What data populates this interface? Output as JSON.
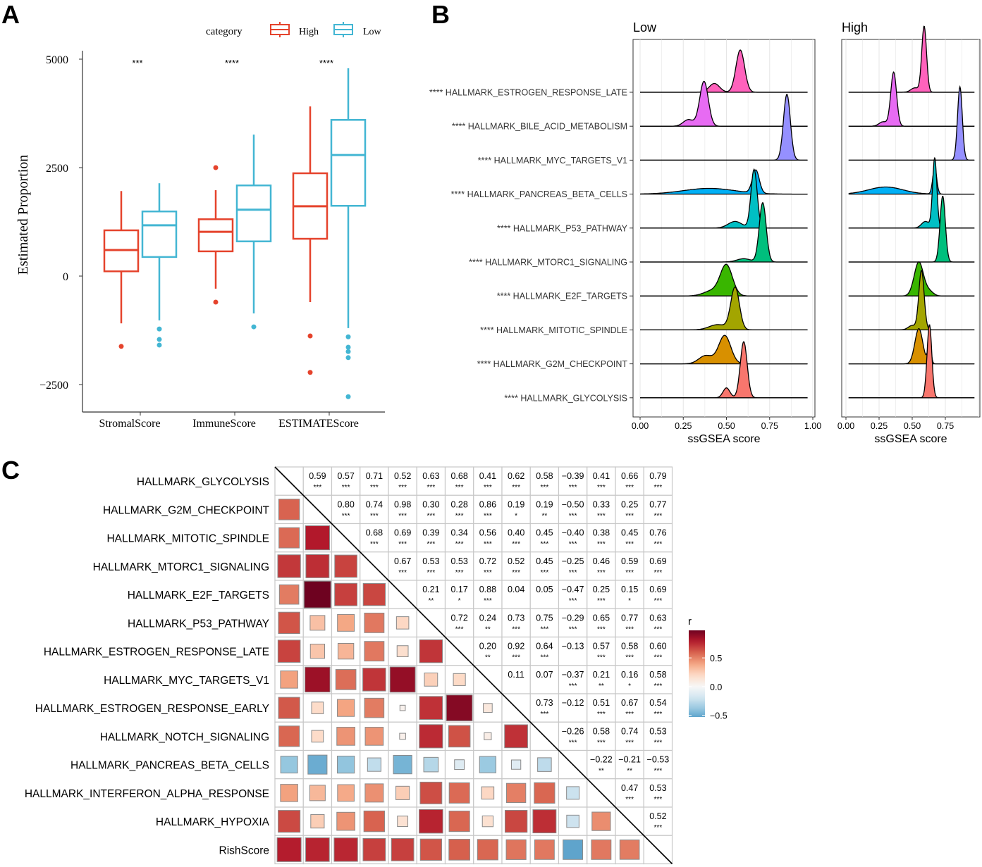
{
  "panel_labels": [
    "A",
    "B",
    "C"
  ],
  "chart_data": [
    {
      "type": "box",
      "title": "",
      "xlabel": "",
      "ylabel": "Estimated Proportion",
      "ylim": [
        -3300,
        5300
      ],
      "yticks": [
        -2500,
        0,
        2500,
        5000
      ],
      "ytick_labels": [
        "−2500",
        "0",
        "2500",
        "5000"
      ],
      "categories": [
        "StromalScore",
        "ImmuneScore",
        "ESTIMATEScore"
      ],
      "significance": [
        "***",
        "****",
        "****"
      ],
      "legend": {
        "title": "category",
        "entries": [
          "High",
          "Low"
        ],
        "placement": "top"
      },
      "colors": {
        "High": "#E5432C",
        "Low": "#43B6D3"
      },
      "series": [
        {
          "name": "High",
          "stats": [
            {
              "lower": -1090,
              "q1": 110,
              "median": 600,
              "q3": 1055,
              "upper": 1960,
              "outliers": [
                -1620
              ]
            },
            {
              "lower": -290,
              "q1": 570,
              "median": 1020,
              "q3": 1310,
              "upper": 1980,
              "outliers": [
                2500,
                -600
              ]
            },
            {
              "lower": -600,
              "q1": 860,
              "median": 1610,
              "q3": 2370,
              "upper": 3910,
              "outliers": [
                -1380,
                -2220
              ]
            }
          ]
        },
        {
          "name": "Low",
          "stats": [
            {
              "lower": -1020,
              "q1": 440,
              "median": 1170,
              "q3": 1490,
              "upper": 2140,
              "outliers": [
                -1220,
                -1460,
                -1590
              ]
            },
            {
              "lower": -860,
              "q1": 800,
              "median": 1530,
              "q3": 2090,
              "upper": 3260,
              "outliers": [
                -1170
              ]
            },
            {
              "lower": -1200,
              "q1": 1620,
              "median": 2790,
              "q3": 3600,
              "upper": 4790,
              "outliers": [
                -1400,
                -1640,
                -1740,
                -1880,
                -2780
              ]
            }
          ]
        }
      ]
    },
    {
      "type": "ridgeline",
      "xlabel": "ssGSEA score",
      "panels": [
        {
          "title": "Low",
          "xlim": [
            -0.04,
            1.0
          ],
          "xticks": [
            0,
            0.25,
            0.5,
            0.75,
            1.0
          ],
          "xtick_labels": [
            "0.00",
            "0.25",
            "0.50",
            "0.75",
            "1.00"
          ]
        },
        {
          "title": "High",
          "xlim": [
            -0.03,
            0.95
          ],
          "xticks": [
            0,
            0.25,
            0.5,
            0.75
          ],
          "xtick_labels": [
            "0.00",
            "0.25",
            "0.50",
            "0.75"
          ]
        }
      ],
      "rows": [
        {
          "label": "**** HALLMARK_ESTROGEN_RESPONSE_LATE",
          "color": "#FF62BC",
          "low": [
            [
              0.58,
              0.025,
              0.8
            ],
            [
              0.43,
              0.03,
              0.2
            ]
          ],
          "high": [
            [
              0.59,
              0.018,
              0.9
            ],
            [
              0.52,
              0.03,
              0.1
            ]
          ]
        },
        {
          "label": "**** HALLMARK_BILE_ACID_METABOLISM",
          "color": "#E76BF3",
          "low": [
            [
              0.37,
              0.025,
              0.85
            ],
            [
              0.28,
              0.03,
              0.15
            ]
          ],
          "high": [
            [
              0.36,
              0.022,
              0.9
            ],
            [
              0.28,
              0.03,
              0.1
            ]
          ]
        },
        {
          "label": "**** HALLMARK_MYC_TARGETS_V1",
          "color": "#9590FF",
          "low": [
            [
              0.85,
              0.02,
              1
            ]
          ],
          "high": [
            [
              0.86,
              0.018,
              1
            ]
          ]
        },
        {
          "label": "**** HALLMARK_PANCREAS_BETA_CELLS",
          "color": "#00B0F6",
          "low": [
            [
              0.67,
              0.02,
              0.35
            ],
            [
              0.4,
              0.15,
              0.65
            ]
          ],
          "high": [
            [
              0.67,
              0.015,
              0.3
            ],
            [
              0.3,
              0.13,
              0.7
            ]
          ]
        },
        {
          "label": "**** HALLMARK_P53_PATHWAY",
          "color": "#00BFC4",
          "low": [
            [
              0.66,
              0.018,
              0.8
            ],
            [
              0.55,
              0.04,
              0.2
            ]
          ],
          "high": [
            [
              0.67,
              0.016,
              0.85
            ],
            [
              0.6,
              0.03,
              0.15
            ]
          ]
        },
        {
          "label": "**** HALLMARK_MTORC1_SIGNALING",
          "color": "#00BF7D",
          "low": [
            [
              0.71,
              0.02,
              0.9
            ],
            [
              0.6,
              0.04,
              0.1
            ]
          ],
          "high": [
            [
              0.73,
              0.02,
              1
            ]
          ]
        },
        {
          "label": "**** HALLMARK_E2F_TARGETS",
          "color": "#39B600",
          "low": [
            [
              0.5,
              0.035,
              0.8
            ],
            [
              0.42,
              0.05,
              0.2
            ]
          ],
          "high": [
            [
              0.55,
              0.035,
              0.9
            ],
            [
              0.63,
              0.03,
              0.1
            ]
          ]
        },
        {
          "label": "**** HALLMARK_MITOTIC_SPINDLE",
          "color": "#A3A500",
          "low": [
            [
              0.55,
              0.025,
              0.8
            ],
            [
              0.45,
              0.05,
              0.2
            ]
          ],
          "high": [
            [
              0.57,
              0.02,
              0.9
            ],
            [
              0.5,
              0.03,
              0.1
            ]
          ]
        },
        {
          "label": "**** HALLMARK_G2M_CHECKPOINT",
          "color": "#D89000",
          "low": [
            [
              0.49,
              0.035,
              0.75
            ],
            [
              0.38,
              0.04,
              0.25
            ]
          ],
          "high": [
            [
              0.55,
              0.03,
              0.8
            ],
            [
              0.63,
              0.012,
              0.2
            ]
          ]
        },
        {
          "label": "**** HALLMARK_GLYCOLYSIS",
          "color": "#F8766D",
          "low": [
            [
              0.6,
              0.02,
              0.85
            ],
            [
              0.5,
              0.02,
              0.15
            ]
          ],
          "high": [
            [
              0.63,
              0.018,
              1
            ]
          ]
        }
      ]
    },
    {
      "type": "heatmap",
      "subtype": "correlation-matrix",
      "labels": [
        "HALLMARK_GLYCOLYSIS",
        "HALLMARK_G2M_CHECKPOINT",
        "HALLMARK_MITOTIC_SPINDLE",
        "HALLMARK_MTORC1_SIGNALING",
        "HALLMARK_E2F_TARGETS",
        "HALLMARK_P53_PATHWAY",
        "HALLMARK_ESTROGEN_RESPONSE_LATE",
        "HALLMARK_MYC_TARGETS_V1",
        "HALLMARK_ESTROGEN_RESPONSE_EARLY",
        "HALLMARK_NOTCH_SIGNALING",
        "HALLMARK_PANCREAS_BETA_CELLS",
        "HALLMARK_INTERFERON_ALPHA_RESPONSE",
        "HALLMARK_HYPOXIA",
        "RishScore"
      ],
      "upper_values": [
        [
          "0.59",
          "0.57",
          "0.71",
          "0.52",
          "0.63",
          "0.68",
          "0.41",
          "0.62",
          "0.58",
          "−0.39",
          "0.41",
          "0.66",
          "0.79"
        ],
        [
          "0.80",
          "0.74",
          "0.98",
          "0.30",
          "0.28",
          "0.86",
          "0.19",
          "0.19",
          "−0.50",
          "0.33",
          "0.25",
          "0.77"
        ],
        [
          "0.68",
          "0.69",
          "0.39",
          "0.34",
          "0.56",
          "0.40",
          "0.45",
          "−0.40",
          "0.38",
          "0.45",
          "0.76"
        ],
        [
          "0.67",
          "0.53",
          "0.53",
          "0.72",
          "0.52",
          "0.45",
          "−0.25",
          "0.46",
          "0.59",
          "0.69"
        ],
        [
          "0.21",
          "0.17",
          "0.88",
          "0.04",
          "0.05",
          "−0.47",
          "0.25",
          "0.15",
          "0.69"
        ],
        [
          "0.72",
          "0.24",
          "0.73",
          "0.75",
          "−0.29",
          "0.65",
          "0.77",
          "0.63"
        ],
        [
          "0.20",
          "0.92",
          "0.64",
          "−0.13",
          "0.57",
          "0.58",
          "0.60"
        ],
        [
          "0.11",
          "0.07",
          "−0.37",
          "0.21",
          "0.16",
          "0.58"
        ],
        [
          "0.73",
          "−0.12",
          "0.51",
          "0.67",
          "0.54"
        ],
        [
          "−0.26",
          "0.58",
          "0.74",
          "0.53"
        ],
        [
          "−0.22",
          "−0.21",
          "−0.53"
        ],
        [
          "0.47",
          "0.53"
        ],
        [
          "0.52"
        ]
      ],
      "upper_stars": [
        [
          "***",
          "***",
          "***",
          "***",
          "***",
          "***",
          "***",
          "***",
          "***",
          "***",
          "***",
          "***",
          "***"
        ],
        [
          "***",
          "***",
          "***",
          "***",
          "***",
          "***",
          "*",
          "**",
          "***",
          "***",
          "***",
          "***"
        ],
        [
          "***",
          "***",
          "***",
          "***",
          "***",
          "***",
          "***",
          "***",
          "***",
          "***",
          "***"
        ],
        [
          "***",
          "***",
          "***",
          "***",
          "***",
          "***",
          "***",
          "***",
          "***",
          "***"
        ],
        [
          "**",
          "*",
          "***",
          "",
          "",
          "***",
          "***",
          "*",
          "***"
        ],
        [
          "***",
          "**",
          "***",
          "***",
          "***",
          "***",
          "***",
          "***"
        ],
        [
          "**",
          "***",
          "***",
          "",
          "***",
          "***",
          "***"
        ],
        [
          "",
          "",
          "***",
          "**",
          "*",
          "***"
        ],
        [
          "***",
          "",
          "***",
          "***",
          "***"
        ],
        [
          "***",
          "***",
          "***",
          "***"
        ],
        [
          "**",
          "**",
          "***"
        ],
        [
          "***",
          "***"
        ],
        [
          "***"
        ]
      ],
      "legend": {
        "title": "r",
        "range": [
          -0.53,
          0.98
        ],
        "ticks": [
          0.5,
          0.0,
          -0.5
        ],
        "tick_labels": [
          "0.5",
          "0.0",
          "−0.5"
        ],
        "placement": "right"
      },
      "palette": [
        "#053061",
        "#2166AC",
        "#4393C3",
        "#92C5DE",
        "#D1E5F0",
        "#F7F7F7",
        "#FDDBC7",
        "#F4A582",
        "#D6604D",
        "#B2182B",
        "#67001F"
      ]
    }
  ]
}
